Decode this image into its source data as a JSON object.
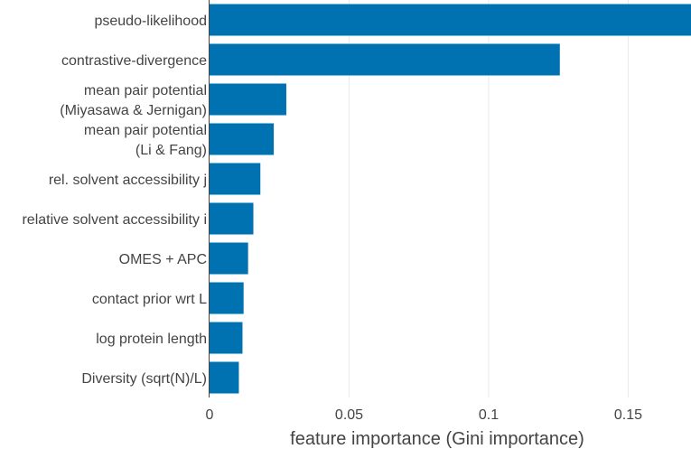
{
  "chart_data": {
    "type": "bar",
    "orientation": "horizontal",
    "categories": [
      [
        "pseudo-likelihood"
      ],
      [
        "contrastive-divergence"
      ],
      [
        "mean pair potential",
        "(Miyasawa & Jernigan)"
      ],
      [
        "mean pair potential",
        "(Li & Fang)"
      ],
      [
        "rel. solvent accessibility j"
      ],
      [
        "relative solvent accessibility i"
      ],
      [
        "OMES + APC"
      ],
      [
        "contact prior wrt L"
      ],
      [
        "log protein length"
      ],
      [
        "Diversity (sqrt(N)/L)"
      ]
    ],
    "values": [
      0.1725,
      0.1255,
      0.0275,
      0.023,
      0.0182,
      0.0157,
      0.0138,
      0.0122,
      0.0118,
      0.0105
    ],
    "xlabel": "feature importance (Gini importance)",
    "ylabel": "",
    "title": "",
    "xlim": [
      0,
      0.1725
    ],
    "xticks": [
      0,
      0.05,
      0.1,
      0.15
    ],
    "xtick_labels": [
      "0",
      "0.05",
      "0.1",
      "0.15"
    ],
    "grid": "vertical",
    "legend": "none",
    "bar_color": "#0072b2",
    "grid_color": "#ebebeb"
  }
}
